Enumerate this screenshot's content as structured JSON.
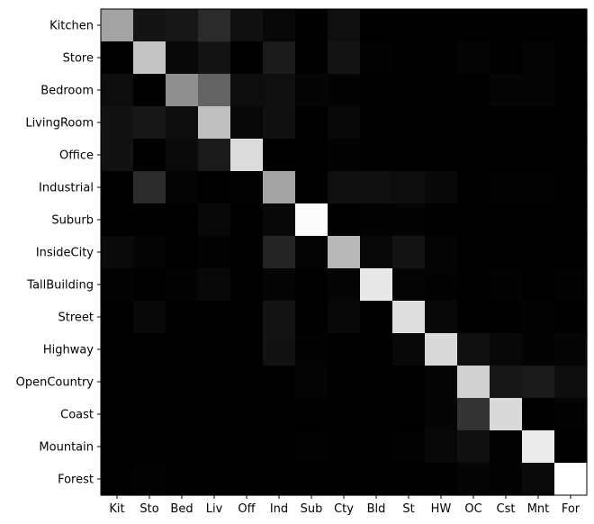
{
  "chart_data": {
    "type": "heatmap",
    "title": "",
    "xlabel": "",
    "ylabel": "",
    "colormap": "gray",
    "value_range": [
      0,
      1
    ],
    "x_labels": [
      "Kit",
      "Sto",
      "Bed",
      "Liv",
      "Off",
      "Ind",
      "Sub",
      "Cty",
      "Bld",
      "St",
      "HW",
      "OC",
      "Cst",
      "Mnt",
      "For"
    ],
    "y_labels": [
      "Kitchen",
      "Store",
      "Bedroom",
      "LivingRoom",
      "Office",
      "Industrial",
      "Suburb",
      "InsideCity",
      "TallBuilding",
      "Street",
      "Highway",
      "OpenCountry",
      "Coast",
      "Mountain",
      "Forest"
    ],
    "matrix": [
      [
        0.64,
        0.08,
        0.09,
        0.17,
        0.06,
        0.03,
        0.0,
        0.06,
        0.0,
        0.0,
        0.0,
        0.0,
        0.0,
        0.0,
        0.0
      ],
      [
        0.0,
        0.77,
        0.03,
        0.08,
        0.0,
        0.1,
        0.0,
        0.08,
        0.01,
        0.0,
        0.0,
        0.02,
        0.0,
        0.02,
        0.0
      ],
      [
        0.05,
        0.0,
        0.56,
        0.39,
        0.05,
        0.06,
        0.02,
        0.01,
        0.0,
        0.0,
        0.0,
        0.0,
        0.02,
        0.02,
        0.0
      ],
      [
        0.07,
        0.09,
        0.05,
        0.75,
        0.03,
        0.06,
        0.0,
        0.03,
        0.0,
        0.0,
        0.0,
        0.0,
        0.0,
        0.0,
        0.0
      ],
      [
        0.07,
        0.0,
        0.04,
        0.1,
        0.86,
        0.0,
        0.0,
        0.01,
        0.0,
        0.0,
        0.0,
        0.0,
        0.0,
        0.0,
        0.0
      ],
      [
        0.0,
        0.17,
        0.02,
        0.0,
        0.01,
        0.64,
        0.0,
        0.06,
        0.06,
        0.05,
        0.03,
        0.0,
        0.01,
        0.01,
        0.0
      ],
      [
        0.0,
        0.0,
        0.0,
        0.03,
        0.0,
        0.03,
        0.99,
        0.0,
        0.01,
        0.01,
        0.0,
        0.0,
        0.0,
        0.0,
        0.0
      ],
      [
        0.04,
        0.02,
        0.0,
        0.01,
        0.0,
        0.14,
        0.02,
        0.72,
        0.03,
        0.08,
        0.02,
        0.0,
        0.0,
        0.0,
        0.0
      ],
      [
        0.01,
        0.0,
        0.01,
        0.03,
        0.0,
        0.02,
        0.0,
        0.02,
        0.91,
        0.02,
        0.01,
        0.0,
        0.01,
        0.0,
        0.01
      ],
      [
        0.0,
        0.03,
        0.0,
        0.0,
        0.0,
        0.08,
        0.0,
        0.03,
        0.0,
        0.87,
        0.03,
        0.0,
        0.0,
        0.01,
        0.0
      ],
      [
        0.0,
        0.0,
        0.0,
        0.0,
        0.0,
        0.07,
        0.01,
        0.0,
        0.0,
        0.03,
        0.85,
        0.06,
        0.03,
        0.01,
        0.02
      ],
      [
        0.0,
        0.0,
        0.0,
        0.0,
        0.0,
        0.0,
        0.02,
        0.0,
        0.0,
        0.0,
        0.02,
        0.82,
        0.09,
        0.1,
        0.05
      ],
      [
        0.0,
        0.0,
        0.0,
        0.0,
        0.0,
        0.0,
        0.0,
        0.0,
        0.0,
        0.0,
        0.02,
        0.2,
        0.85,
        0.0,
        0.01
      ],
      [
        0.0,
        0.0,
        0.0,
        0.0,
        0.0,
        0.0,
        0.01,
        0.0,
        0.0,
        0.01,
        0.03,
        0.06,
        0.01,
        0.92,
        0.0
      ],
      [
        0.0,
        0.01,
        0.0,
        0.0,
        0.0,
        0.0,
        0.0,
        0.0,
        0.0,
        0.0,
        0.0,
        0.02,
        0.01,
        0.04,
        1.0
      ]
    ]
  }
}
